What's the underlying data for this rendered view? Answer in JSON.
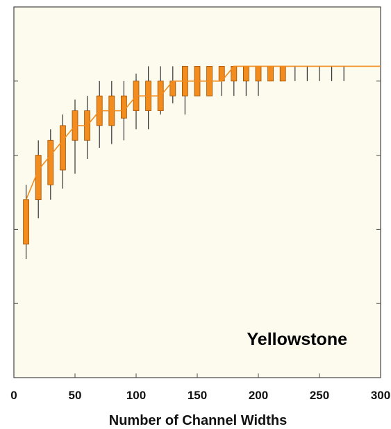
{
  "chart_data": {
    "type": "box",
    "title": "",
    "xlabel": "Number of Channel Widths",
    "ylabel": "",
    "annotation": "Yellowstone",
    "xlim": [
      0,
      300
    ],
    "ylim": [
      0,
      5
    ],
    "x_ticks": [
      0,
      50,
      100,
      150,
      200,
      250,
      300
    ],
    "y_ticks": [
      0,
      1,
      2,
      3,
      4,
      5
    ],
    "y_tick_labels_shown": false,
    "grid": false,
    "colors": {
      "background": "#fdfbed",
      "box_fill": "#f28c1e",
      "box_stroke": "#a04e00",
      "whisker": "#333333",
      "median_line": "#f28c1e",
      "axis": "#444444"
    },
    "boxes": [
      {
        "x": 10,
        "low": 1.6,
        "q1": 1.8,
        "q3": 2.4,
        "high": 2.6
      },
      {
        "x": 20,
        "low": 2.15,
        "q1": 2.4,
        "q3": 3.0,
        "high": 3.2
      },
      {
        "x": 30,
        "low": 2.4,
        "q1": 2.6,
        "q3": 3.2,
        "high": 3.35
      },
      {
        "x": 40,
        "low": 2.55,
        "q1": 2.8,
        "q3": 3.4,
        "high": 3.55
      },
      {
        "x": 50,
        "low": 2.75,
        "q1": 3.2,
        "q3": 3.6,
        "high": 3.75
      },
      {
        "x": 60,
        "low": 2.95,
        "q1": 3.2,
        "q3": 3.6,
        "high": 3.8
      },
      {
        "x": 70,
        "low": 3.1,
        "q1": 3.4,
        "q3": 3.8,
        "high": 4.0
      },
      {
        "x": 80,
        "low": 3.15,
        "q1": 3.4,
        "q3": 3.8,
        "high": 4.0
      },
      {
        "x": 90,
        "low": 3.2,
        "q1": 3.5,
        "q3": 3.8,
        "high": 4.0
      },
      {
        "x": 100,
        "low": 3.35,
        "q1": 3.6,
        "q3": 4.0,
        "high": 4.1
      },
      {
        "x": 110,
        "low": 3.35,
        "q1": 3.6,
        "q3": 4.0,
        "high": 4.2
      },
      {
        "x": 120,
        "low": 3.55,
        "q1": 3.6,
        "q3": 4.0,
        "high": 4.2
      },
      {
        "x": 130,
        "low": 3.7,
        "q1": 3.8,
        "q3": 4.0,
        "high": 4.2
      },
      {
        "x": 140,
        "low": 3.55,
        "q1": 3.8,
        "q3": 4.2,
        "high": 4.2
      },
      {
        "x": 150,
        "low": 3.8,
        "q1": 3.8,
        "q3": 4.2,
        "high": 4.2
      },
      {
        "x": 160,
        "low": 3.8,
        "q1": 3.8,
        "q3": 4.2,
        "high": 4.2
      },
      {
        "x": 170,
        "low": 3.8,
        "q1": 4.0,
        "q3": 4.2,
        "high": 4.2
      },
      {
        "x": 180,
        "low": 3.8,
        "q1": 4.0,
        "q3": 4.2,
        "high": 4.2
      },
      {
        "x": 190,
        "low": 3.8,
        "q1": 4.0,
        "q3": 4.2,
        "high": 4.2
      },
      {
        "x": 200,
        "low": 3.8,
        "q1": 4.0,
        "q3": 4.2,
        "high": 4.2
      },
      {
        "x": 210,
        "low": 4.0,
        "q1": 4.0,
        "q3": 4.2,
        "high": 4.2
      },
      {
        "x": 220,
        "low": 4.0,
        "q1": 4.0,
        "q3": 4.2,
        "high": 4.2
      },
      {
        "x": 230,
        "low": 4.0,
        "q1": 4.2,
        "q3": 4.2,
        "high": 4.2
      },
      {
        "x": 240,
        "low": 4.0,
        "q1": 4.2,
        "q3": 4.2,
        "high": 4.2
      },
      {
        "x": 250,
        "low": 4.0,
        "q1": 4.2,
        "q3": 4.2,
        "high": 4.2
      },
      {
        "x": 260,
        "low": 4.0,
        "q1": 4.2,
        "q3": 4.2,
        "high": 4.2
      },
      {
        "x": 270,
        "low": 4.0,
        "q1": 4.2,
        "q3": 4.2,
        "high": 4.2
      }
    ],
    "median_line": {
      "x": [
        10,
        20,
        30,
        40,
        50,
        60,
        70,
        80,
        90,
        100,
        110,
        120,
        130,
        140,
        150,
        160,
        170,
        180,
        300
      ],
      "y": [
        2.4,
        2.8,
        3.0,
        3.2,
        3.4,
        3.4,
        3.6,
        3.6,
        3.6,
        3.8,
        3.8,
        3.8,
        4.0,
        4.0,
        4.0,
        4.0,
        4.0,
        4.2,
        4.2
      ]
    }
  }
}
